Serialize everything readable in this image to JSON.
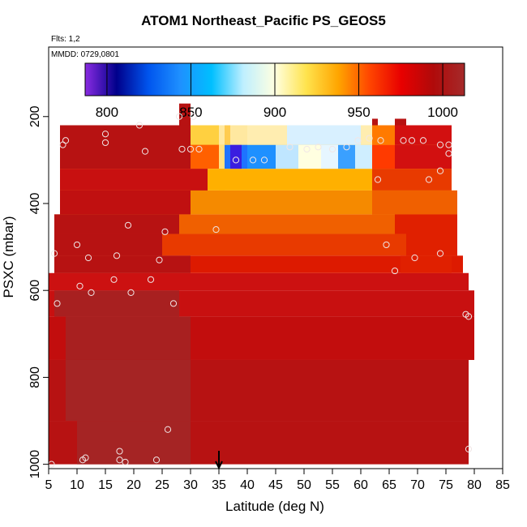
{
  "header": {
    "title": "ATOM1 Northeast_Pacific PS_GEOS5",
    "flts": "Flts: 1,2",
    "mmdd": "MMDD: 0729,0801"
  },
  "colorbar": {
    "ticks": [
      "800",
      "850",
      "900",
      "950",
      "1000"
    ],
    "values": [
      800,
      850,
      900,
      950,
      1000
    ],
    "range": [
      787,
      1013
    ],
    "colors": [
      "#8a2be2",
      "#00008b",
      "#0055ee",
      "#1e90ff",
      "#00bfff",
      "#bfefff",
      "#ffffe0",
      "#ffe34d",
      "#ffa500",
      "#ff4500",
      "#e80000",
      "#b00a0a",
      "#a52a2a"
    ]
  },
  "chart_data": {
    "type": "heatmap",
    "title": "ATOM1 Northeast_Pacific PS_GEOS5",
    "xlabel": "Latitude (deg N)",
    "ylabel": "PSXC (mbar)",
    "xlim": [
      5,
      85
    ],
    "ylim": [
      1010,
      40
    ],
    "x_ticks": [
      "5",
      "10",
      "15",
      "20",
      "25",
      "30",
      "35",
      "40",
      "45",
      "50",
      "55",
      "60",
      "65",
      "70",
      "75",
      "80",
      "85"
    ],
    "x_tick_values": [
      5,
      10,
      15,
      20,
      25,
      30,
      35,
      40,
      45,
      50,
      55,
      60,
      65,
      70,
      75,
      80,
      85
    ],
    "y_ticks": [
      "200",
      "400",
      "600",
      "800",
      "1000"
    ],
    "y_tick_values": [
      200,
      400,
      600,
      800,
      1000
    ],
    "colorbar_label": "",
    "arrow_marker_lat": 35,
    "base_color": "#b71212",
    "segments": [
      {
        "p": [
          1000,
          900
        ],
        "lat": [
          5,
          79
        ],
        "color": "#b71212"
      },
      {
        "p": [
          1000,
          900
        ],
        "lat": [
          10,
          30
        ],
        "color": "#a52424"
      },
      {
        "p": [
          900,
          760
        ],
        "lat": [
          5,
          79
        ],
        "color": "#b71212"
      },
      {
        "p": [
          900,
          760
        ],
        "lat": [
          8,
          30
        ],
        "color": "#a52424"
      },
      {
        "p": [
          760,
          660
        ],
        "lat": [
          5,
          80
        ],
        "color": "#c20d0d"
      },
      {
        "p": [
          760,
          660
        ],
        "lat": [
          8,
          30
        ],
        "color": "#a82020"
      },
      {
        "p": [
          660,
          600
        ],
        "lat": [
          5,
          80
        ],
        "color": "#c81010"
      },
      {
        "p": [
          660,
          600
        ],
        "lat": [
          6,
          28
        ],
        "color": "#a82020"
      },
      {
        "p": [
          600,
          560
        ],
        "lat": [
          5,
          79
        ],
        "color": "#cc1111"
      },
      {
        "p": [
          560,
          520
        ],
        "lat": [
          6,
          78
        ],
        "color": "#dd1a00"
      },
      {
        "p": [
          520,
          470
        ],
        "lat": [
          6,
          77
        ],
        "color": "#e83a00"
      },
      {
        "p": [
          470,
          425
        ],
        "lat": [
          6,
          77
        ],
        "color": "#f06000"
      },
      {
        "p": [
          425,
          370
        ],
        "lat": [
          7,
          77
        ],
        "color": "#f58a00"
      },
      {
        "p": [
          370,
          320
        ],
        "lat": [
          7,
          76
        ],
        "color": "#ffb000"
      },
      {
        "p": [
          320,
          270
        ],
        "lat": [
          7,
          76
        ],
        "color": "#ffe890"
      },
      {
        "p": [
          270,
          220
        ],
        "lat": [
          7,
          76
        ],
        "color": "#ffd040"
      },
      {
        "p": [
          220,
          170
        ],
        "lat": [
          28,
          30
        ],
        "color": "#b71212"
      }
    ],
    "points_lat_p": [
      [
        5.5,
        1000
      ],
      [
        6,
        515
      ],
      [
        6.5,
        630
      ],
      [
        7.5,
        265
      ],
      [
        8,
        255
      ],
      [
        10,
        495
      ],
      [
        10.5,
        590
      ],
      [
        11,
        990
      ],
      [
        11.5,
        985
      ],
      [
        12,
        525
      ],
      [
        12.5,
        605
      ],
      [
        15,
        240
      ],
      [
        15,
        260
      ],
      [
        16.5,
        575
      ],
      [
        17,
        520
      ],
      [
        17.5,
        990
      ],
      [
        17.5,
        970
      ],
      [
        18.5,
        995
      ],
      [
        19,
        450
      ],
      [
        19.5,
        605
      ],
      [
        21,
        220
      ],
      [
        22,
        280
      ],
      [
        23,
        575
      ],
      [
        24,
        990
      ],
      [
        24.5,
        530
      ],
      [
        25.5,
        465
      ],
      [
        26,
        920
      ],
      [
        27,
        630
      ],
      [
        28,
        200
      ],
      [
        28.5,
        275
      ],
      [
        30,
        275
      ],
      [
        30.5,
        200
      ],
      [
        31.5,
        275
      ],
      [
        34.5,
        460
      ],
      [
        38,
        300
      ],
      [
        41,
        300
      ],
      [
        43,
        300
      ],
      [
        47.5,
        270
      ],
      [
        50.5,
        275
      ],
      [
        52.5,
        270
      ],
      [
        55,
        275
      ],
      [
        57.5,
        270
      ],
      [
        59.5,
        255
      ],
      [
        61.5,
        250
      ],
      [
        63.5,
        255
      ],
      [
        63,
        345
      ],
      [
        64.5,
        495
      ],
      [
        66,
        555
      ],
      [
        67.5,
        255
      ],
      [
        69,
        255
      ],
      [
        69.5,
        525
      ],
      [
        71,
        255
      ],
      [
        72,
        345
      ],
      [
        74,
        325
      ],
      [
        74,
        265
      ],
      [
        74,
        515
      ],
      [
        75.5,
        265
      ],
      [
        75.5,
        285
      ],
      [
        78.5,
        655
      ],
      [
        79,
        660
      ],
      [
        79,
        965
      ]
    ]
  }
}
